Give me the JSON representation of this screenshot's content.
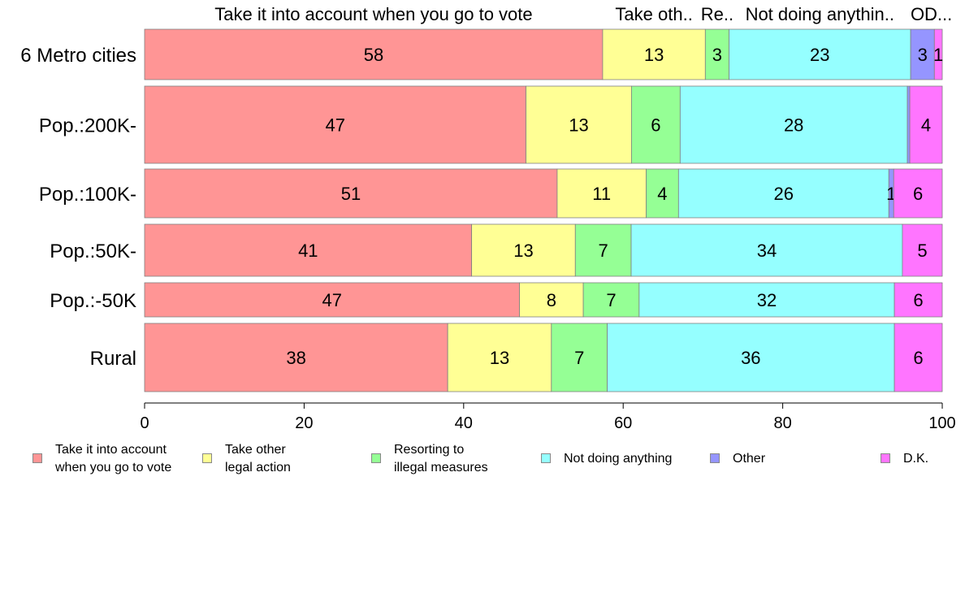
{
  "chart_data": {
    "type": "bar",
    "orientation": "horizontal",
    "stacked": true,
    "categories": [
      "6 Metro cities",
      "Pop.:200K-",
      "Pop.:100K-",
      "Pop.:50K-",
      "Pop.:-50K",
      "Rural"
    ],
    "series": [
      {
        "name": "Take it into account\nwhen you go to vote",
        "color": "#ff9595",
        "values": [
          58,
          47,
          51,
          41,
          47,
          38
        ]
      },
      {
        "name": "Take other\nlegal action",
        "color": "#ffff95",
        "values": [
          13,
          13,
          11,
          13,
          8,
          13
        ]
      },
      {
        "name": "Resorting to\nillegal measures",
        "color": "#95ff95",
        "values": [
          3,
          6,
          4,
          7,
          7,
          7
        ]
      },
      {
        "name": "Not doing anything",
        "color": "#95ffff",
        "values": [
          23,
          28,
          26,
          34,
          32,
          36
        ]
      },
      {
        "name": "Other",
        "color": "#9595ff",
        "values": [
          3,
          0.3,
          0.6,
          0,
          0,
          0
        ]
      },
      {
        "name": "D.K.",
        "color": "#ff75ff",
        "values": [
          1,
          4,
          6,
          5,
          6,
          6
        ]
      }
    ],
    "data_labels": [
      [
        "58",
        "13",
        "3",
        "23",
        "3",
        "1"
      ],
      [
        "47",
        "13",
        "6",
        "28",
        "",
        "4"
      ],
      [
        "51",
        "11",
        "4",
        "26",
        "1",
        "6"
      ],
      [
        "41",
        "13",
        "7",
        "34",
        "",
        "5"
      ],
      [
        "47",
        "8",
        "7",
        "32",
        "",
        "6"
      ],
      [
        "38",
        "13",
        "7",
        "36",
        "",
        "6"
      ]
    ],
    "top_labels": [
      "Take it into account when you go to vote",
      "Take oth..",
      "Re..",
      "Not doing anythin..",
      "O..",
      "D..."
    ],
    "xlim": [
      0,
      100
    ],
    "xticks": [
      "0",
      "20",
      "40",
      "60",
      "80",
      "100"
    ],
    "grid": false,
    "legend_position": "bottom"
  }
}
